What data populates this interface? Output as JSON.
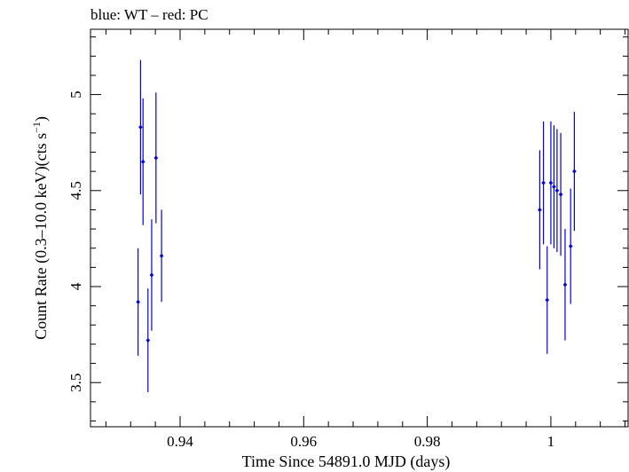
{
  "chart_data": {
    "type": "scatter",
    "title": "blue: WT – red: PC",
    "xlabel": "Time Since 54891.0 MJD (days)",
    "ylabel_main": "Count Rate (0.3–10.0 keV)(cts s",
    "ylabel_sup": "−1",
    "ylabel_close": ")",
    "xlim": [
      0.9255,
      1.0125
    ],
    "ylim": [
      3.27,
      5.34
    ],
    "x_major_ticks": [
      0.94,
      0.96,
      0.98,
      1.0
    ],
    "x_tick_labels": [
      "0.94",
      "0.96",
      "0.98",
      "1"
    ],
    "y_major_ticks": [
      3.5,
      4.0,
      4.5,
      5.0
    ],
    "y_tick_labels": [
      "3.5",
      "4",
      "4.5",
      "5"
    ],
    "grid": false,
    "colors": {
      "WT": "#0000e0",
      "axes": "#000000"
    },
    "series": [
      {
        "name": "WT",
        "points": [
          {
            "x": 0.9332,
            "y": 3.92,
            "yerr": 0.28
          },
          {
            "x": 0.9336,
            "y": 4.83,
            "yerr": 0.35
          },
          {
            "x": 0.934,
            "y": 4.65,
            "yerr": 0.33
          },
          {
            "x": 0.9348,
            "y": 3.72,
            "yerr": 0.27
          },
          {
            "x": 0.9354,
            "y": 4.06,
            "yerr": 0.29
          },
          {
            "x": 0.9361,
            "y": 4.67,
            "yerr": 0.34
          },
          {
            "x": 0.937,
            "y": 4.16,
            "yerr": 0.24
          },
          {
            "x": 0.9982,
            "y": 4.4,
            "yerr": 0.31
          },
          {
            "x": 0.9988,
            "y": 4.54,
            "yerr": 0.32
          },
          {
            "x": 0.9994,
            "y": 3.93,
            "yerr": 0.28
          },
          {
            "x": 1.0,
            "y": 4.54,
            "yerr": 0.32
          },
          {
            "x": 1.0005,
            "y": 4.52,
            "yerr": 0.32
          },
          {
            "x": 1.001,
            "y": 4.5,
            "yerr": 0.32
          },
          {
            "x": 1.0016,
            "y": 4.48,
            "yerr": 0.32
          },
          {
            "x": 1.0023,
            "y": 4.01,
            "yerr": 0.29
          },
          {
            "x": 1.0032,
            "y": 4.21,
            "yerr": 0.3
          },
          {
            "x": 1.0038,
            "y": 4.6,
            "yerr": 0.31
          }
        ]
      }
    ]
  }
}
